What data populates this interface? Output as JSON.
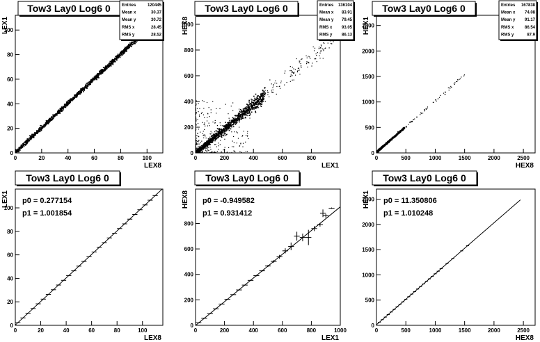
{
  "panels": [
    {
      "title": "Tow3 Lay0 Log6 0",
      "xlabel": "LEX8",
      "ylabel": "LEX1",
      "stats": [
        [
          "Entries",
          "120445"
        ],
        [
          "Mean x",
          "30.37"
        ],
        [
          "Mean y",
          "30.72"
        ],
        [
          "RMS x",
          "28.45"
        ],
        [
          "RMS y",
          "28.52"
        ]
      ]
    },
    {
      "title": "Tow3 Lay0 Log6 0",
      "xlabel": "LEX1",
      "ylabel": "HEX8",
      "stats": [
        [
          "Entries",
          "136104"
        ],
        [
          "Mean x",
          "83.91"
        ],
        [
          "Mean y",
          "79.45"
        ],
        [
          "RMS x",
          "93.05"
        ],
        [
          "RMS y",
          "86.13"
        ]
      ]
    },
    {
      "title": "Tow3 Lay0 Log6 0",
      "xlabel": "HEX8",
      "ylabel": "HEX1",
      "stats": [
        [
          "Entries",
          "167838"
        ],
        [
          "Mean x",
          "74.08"
        ],
        [
          "Mean y",
          "91.17"
        ],
        [
          "RMS x",
          "86.54"
        ],
        [
          "RMS y",
          "87.9"
        ]
      ]
    },
    {
      "title": "Tow3 Lay0 Log6 0",
      "xlabel": "LEX8",
      "ylabel": "LEX1",
      "fit": [
        "p0 = 0.277154",
        "p1 = 1.001854"
      ]
    },
    {
      "title": "Tow3 Lay0 Log6 0",
      "xlabel": "LEX1",
      "ylabel": "HEX8",
      "fit": [
        "p0 = -0.949582",
        "p1 = 0.931412"
      ]
    },
    {
      "title": "Tow3 Lay0 Log6 0",
      "xlabel": "HEX8",
      "ylabel": "HEX1",
      "fit": [
        "p0 = 11.350806",
        "p1 = 1.010248"
      ]
    }
  ],
  "chart_data": [
    {
      "type": "scatter",
      "title": "Tow3 Lay0 Log6 0",
      "xlabel": "LEX8",
      "ylabel": "LEX1",
      "xlim": [
        0,
        112
      ],
      "ylim": [
        0,
        112
      ],
      "xticks": [
        0,
        20,
        40,
        60,
        80,
        100
      ],
      "yticks": [
        0,
        20,
        40,
        60,
        80,
        100
      ],
      "trend": {
        "p0": 0.277154,
        "p1": 1.001854,
        "xmax": 105
      },
      "stats": {
        "entries": 120445,
        "mean_x": 30.37,
        "mean_y": 30.72,
        "rms_x": 28.45,
        "rms_y": 28.52
      }
    },
    {
      "type": "scatter",
      "title": "Tow3 Lay0 Log6 0",
      "xlabel": "LEX1",
      "ylabel": "HEX8",
      "xlim": [
        0,
        1000
      ],
      "ylim": [
        0,
        1070
      ],
      "xticks": [
        0,
        200,
        400,
        600,
        800
      ],
      "yticks": [
        0,
        200,
        400,
        600,
        800,
        1000
      ],
      "trend": {
        "p0": -0.949582,
        "p1": 0.931412,
        "xmax": 960
      },
      "stats": {
        "entries": 136104,
        "mean_x": 83.91,
        "mean_y": 79.45,
        "rms_x": 93.05,
        "rms_y": 86.13
      }
    },
    {
      "type": "scatter",
      "title": "Tow3 Lay0 Log6 0",
      "xlabel": "HEX8",
      "ylabel": "HEX1",
      "xlim": [
        0,
        2700
      ],
      "ylim": [
        0,
        2700
      ],
      "xticks": [
        0,
        500,
        1000,
        1500,
        2000,
        2500
      ],
      "yticks": [
        0,
        500,
        1000,
        1500,
        2000,
        2500
      ],
      "trend": {
        "p0": 11.350806,
        "p1": 1.010248,
        "xmax": 1560
      },
      "stats": {
        "entries": 167838,
        "mean_x": 74.08,
        "mean_y": 91.17,
        "rms_x": 86.54,
        "rms_y": 87.9
      }
    },
    {
      "type": "line",
      "title": "Tow3 Lay0 Log6 0",
      "xlabel": "LEX8",
      "ylabel": "LEX1",
      "xlim": [
        0,
        116
      ],
      "ylim": [
        0,
        116
      ],
      "xticks": [
        0,
        20,
        40,
        60,
        80,
        100
      ],
      "yticks": [
        0,
        20,
        40,
        60,
        80,
        100
      ],
      "fit": {
        "p0": 0.277154,
        "p1": 1.001854
      },
      "profile_x": [
        2,
        6,
        10,
        14,
        18,
        22,
        26,
        30,
        34,
        38,
        42,
        46,
        50,
        54,
        58,
        62,
        66,
        70,
        74,
        78,
        82,
        86,
        90,
        94,
        98,
        102,
        106,
        110
      ],
      "profile_y": [
        2.3,
        6.3,
        10.3,
        14.3,
        18.3,
        22.3,
        26.3,
        30.3,
        34.3,
        38.3,
        42.4,
        46.4,
        50.4,
        54.4,
        58.4,
        62.4,
        66.4,
        70.4,
        74.4,
        78.4,
        82.4,
        86.4,
        90.4,
        94.4,
        98.4,
        102.5,
        106.5,
        110.5
      ]
    },
    {
      "type": "line",
      "title": "Tow3 Lay0 Log6 0",
      "xlabel": "LEX1",
      "ylabel": "HEX8",
      "xlim": [
        0,
        1000
      ],
      "ylim": [
        0,
        1070
      ],
      "xticks": [
        0,
        200,
        400,
        600,
        800,
        1000
      ],
      "yticks": [
        0,
        200,
        400,
        600,
        800
      ],
      "fit": {
        "p0": -0.949582,
        "p1": 0.931412
      },
      "profile_x": [
        20,
        60,
        100,
        140,
        180,
        220,
        260,
        300,
        340,
        380,
        420,
        460,
        500,
        540,
        580,
        620,
        660,
        700,
        740,
        780,
        820,
        860,
        880,
        900,
        940
      ],
      "profile_y": [
        20,
        55,
        92,
        130,
        167,
        204,
        241,
        278,
        316,
        353,
        390,
        428,
        466,
        502,
        538,
        585,
        620,
        700,
        690,
        690,
        760,
        790,
        880,
        860,
        920
      ],
      "profile_err": [
        3,
        3,
        3,
        3,
        3,
        3,
        3,
        3,
        3,
        4,
        5,
        6,
        8,
        10,
        15,
        20,
        30,
        35,
        30,
        60,
        20,
        15,
        30,
        15,
        5
      ]
    },
    {
      "type": "line",
      "title": "Tow3 Lay0 Log6 0",
      "xlabel": "HEX8",
      "ylabel": "HEX1",
      "xlim": [
        0,
        2700
      ],
      "ylim": [
        0,
        2700
      ],
      "xticks": [
        0,
        500,
        1000,
        1500,
        2000,
        2500
      ],
      "yticks": [
        0,
        500,
        1000,
        1500,
        2000,
        2500
      ],
      "fit": {
        "p0": 11.350806,
        "p1": 1.010248,
        "xmax": 2450
      },
      "profile_x": [
        50,
        100,
        150,
        200,
        250,
        300,
        350,
        400,
        450,
        500,
        550,
        600,
        650,
        700,
        750,
        800,
        850,
        900,
        950,
        1000,
        1050,
        1100,
        1200,
        1300,
        1450,
        1550
      ],
      "profile_y": [
        62,
        113,
        163,
        214,
        264,
        315,
        365,
        416,
        466,
        517,
        567,
        618,
        668,
        719,
        769,
        820,
        870,
        921,
        971,
        1022,
        1072,
        1123,
        1224,
        1325,
        1476,
        1577
      ]
    }
  ]
}
